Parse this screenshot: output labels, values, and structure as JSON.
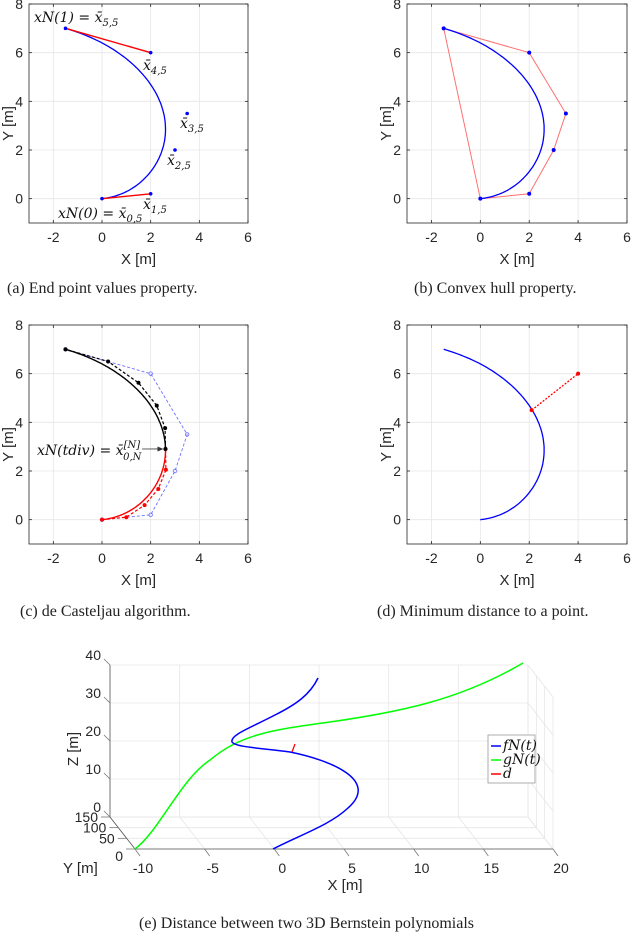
{
  "captions": {
    "a": "(a) End point values property.",
    "b": "(b) Convex hull property.",
    "c": "(c) de Casteljau algorithm.",
    "d": "(d) Minimum distance to a point.",
    "e": "(e) Distance between two 3D Bernstein polynomials"
  },
  "colors": {
    "blue": "#0000ff",
    "red": "#ff0000",
    "green": "#00ff00",
    "black": "#000000",
    "hull": "#ff7070",
    "grid": "#e6e6e6",
    "axis": "#262626"
  },
  "chart_data": [
    {
      "id": "a",
      "type": "line",
      "title": "End point values property.",
      "xlabel": "X [m]",
      "ylabel": "Y [m]",
      "xlim": [
        -3,
        6
      ],
      "ylim": [
        -1,
        8
      ],
      "xticks": [
        -2,
        0,
        2,
        4,
        6
      ],
      "yticks": [
        0,
        2,
        4,
        6,
        8
      ],
      "grid": true,
      "control_points": [
        [
          0,
          0
        ],
        [
          2,
          0.2
        ],
        [
          3,
          2
        ],
        [
          3.5,
          3.5
        ],
        [
          2,
          6
        ],
        [
          -1.5,
          7
        ]
      ],
      "series": [
        {
          "name": "Bernstein curve",
          "color": "#0000ff",
          "style": "solid"
        },
        {
          "name": "end tangent start",
          "color": "#ff0000",
          "points": [
            [
              0,
              0
            ],
            [
              2,
              0.2
            ]
          ]
        },
        {
          "name": "end tangent end",
          "color": "#ff0000",
          "points": [
            [
              -1.5,
              7
            ],
            [
              2,
              6
            ]
          ]
        }
      ],
      "annotations": [
        {
          "text": "xN(1) = x̄5,5",
          "at": [
            -1.5,
            7
          ]
        },
        {
          "text": "x̄4,5",
          "at": [
            2,
            6
          ]
        },
        {
          "text": "x̄3,5",
          "at": [
            3.5,
            3.5
          ]
        },
        {
          "text": "x̄2,5",
          "at": [
            3,
            2
          ]
        },
        {
          "text": "x̄1,5",
          "at": [
            2,
            0.2
          ]
        },
        {
          "text": "xN(0) = x̄0,5",
          "at": [
            0,
            0
          ]
        }
      ]
    },
    {
      "id": "b",
      "type": "line",
      "title": "Convex hull property.",
      "xlabel": "X [m]",
      "ylabel": "Y [m]",
      "xlim": [
        -3,
        6
      ],
      "ylim": [
        -1,
        8
      ],
      "xticks": [
        -2,
        0,
        2,
        4,
        6
      ],
      "yticks": [
        0,
        2,
        4,
        6,
        8
      ],
      "grid": true,
      "control_points": [
        [
          0,
          0
        ],
        [
          2,
          0.2
        ],
        [
          3,
          2
        ],
        [
          3.5,
          3.5
        ],
        [
          2,
          6
        ],
        [
          -1.5,
          7
        ]
      ],
      "hull": [
        [
          0,
          0
        ],
        [
          2,
          0.2
        ],
        [
          3,
          2
        ],
        [
          3.5,
          3.5
        ],
        [
          2,
          6
        ],
        [
          -1.5,
          7
        ],
        [
          0,
          0
        ]
      ],
      "series": [
        {
          "name": "Bernstein curve",
          "color": "#0000ff"
        },
        {
          "name": "convex hull",
          "color": "#ff7070"
        }
      ]
    },
    {
      "id": "c",
      "type": "line",
      "title": "de Casteljau algorithm.",
      "xlabel": "X [m]",
      "ylabel": "Y [m]",
      "xlim": [
        -3,
        6
      ],
      "ylim": [
        -1,
        8
      ],
      "xticks": [
        -2,
        0,
        2,
        4,
        6
      ],
      "yticks": [
        0,
        2,
        4,
        6,
        8
      ],
      "grid": true,
      "control_points": [
        [
          0,
          0
        ],
        [
          2,
          0.2
        ],
        [
          3,
          2
        ],
        [
          3.5,
          3.5
        ],
        [
          2,
          6
        ],
        [
          -1.5,
          7
        ]
      ],
      "t_div": 0.5,
      "series": [
        {
          "name": "original control polygon",
          "color": "#6a6aff",
          "style": "dashed"
        },
        {
          "name": "left sub-curve",
          "color": "#ff0000",
          "style": "solid"
        },
        {
          "name": "left sub-polygon",
          "color": "#ff0000",
          "style": "dashed"
        },
        {
          "name": "right sub-curve",
          "color": "#000000",
          "style": "solid"
        },
        {
          "name": "right sub-polygon",
          "color": "#000000",
          "style": "dashed"
        }
      ],
      "annotations": [
        {
          "text": "xN(tdiv) = x̄[N]0,N",
          "arrow_to": "division point"
        }
      ]
    },
    {
      "id": "d",
      "type": "line",
      "title": "Minimum distance to a point.",
      "xlabel": "X [m]",
      "ylabel": "Y [m]",
      "xlim": [
        -3,
        6
      ],
      "ylim": [
        -1,
        8
      ],
      "xticks": [
        -2,
        0,
        2,
        4,
        6
      ],
      "yticks": [
        0,
        2,
        4,
        6,
        8
      ],
      "grid": true,
      "control_points": [
        [
          0,
          0
        ],
        [
          2,
          0.2
        ],
        [
          3,
          2
        ],
        [
          3.5,
          3.5
        ],
        [
          2,
          6
        ],
        [
          -1.5,
          7
        ]
      ],
      "query_point": [
        4,
        6
      ],
      "closest_point": [
        2.1,
        4.5
      ],
      "series": [
        {
          "name": "Bernstein curve",
          "color": "#0000ff"
        },
        {
          "name": "min distance",
          "color": "#ff0000",
          "style": "dotted"
        }
      ]
    },
    {
      "id": "e",
      "type": "line",
      "title": "Distance between two 3D Bernstein polynomials",
      "xlabel": "X [m]",
      "ylabel": "Y [m]",
      "zlabel": "Z [m]",
      "xlim": [
        -10,
        20
      ],
      "ylim": [
        0,
        150
      ],
      "zlim": [
        0,
        40
      ],
      "xticks": [
        -10,
        -5,
        0,
        5,
        10,
        15,
        20
      ],
      "yticks": [
        0,
        50,
        100,
        150
      ],
      "zticks": [
        0,
        10,
        20,
        30,
        40
      ],
      "grid": true,
      "legend": {
        "position": "right",
        "entries": [
          {
            "label": "fN(t)",
            "color": "#0000ff"
          },
          {
            "label": "gN(t)",
            "color": "#00ff00"
          },
          {
            "label": "d",
            "color": "#ff0000"
          }
        ]
      },
      "series": [
        {
          "name": "fN(t)",
          "color": "#0000ff"
        },
        {
          "name": "gN(t)",
          "color": "#00ff00"
        },
        {
          "name": "d",
          "color": "#ff0000"
        }
      ]
    }
  ],
  "labels": {
    "xm": "X [m]",
    "ym": "Y [m]",
    "zm": "Z [m]",
    "a_top": "xN(1) = x̄",
    "a_top_sub": "5,5",
    "a_bot": "xN(0) = x̄",
    "a_bot_sub": "0,5",
    "cp": [
      "x̄",
      "x̄",
      "x̄",
      "x̄"
    ],
    "cp_sub": [
      "4,5",
      "3,5",
      "2,5",
      "1,5"
    ],
    "c_ann": "xN(tdiv) = x̄",
    "c_ann_sup": "[N]",
    "c_ann_sub": "0,N",
    "legend": [
      "fN(t)",
      "gN(t)",
      "d"
    ]
  }
}
